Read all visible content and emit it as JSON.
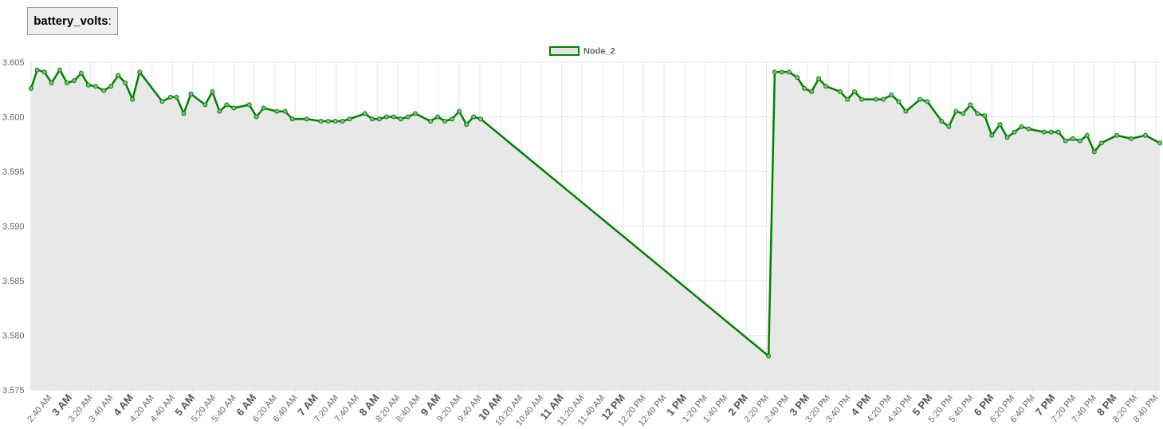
{
  "header": {
    "label": "battery_volts",
    "suffix": ":"
  },
  "chart_data": {
    "type": "line",
    "x": [
      "02:22",
      "02:28",
      "02:35",
      "02:42",
      "02:50",
      "02:57",
      "03:04",
      "03:11",
      "03:18",
      "03:25",
      "03:33",
      "03:40",
      "03:47",
      "03:54",
      "04:01",
      "04:08",
      "04:30",
      "04:38",
      "04:44",
      "04:51",
      "04:58",
      "05:12",
      "05:19",
      "05:26",
      "05:33",
      "05:40",
      "05:55",
      "06:02",
      "06:09",
      "06:22",
      "06:30",
      "06:37",
      "06:51",
      "07:05",
      "07:12",
      "07:19",
      "07:26",
      "07:33",
      "07:48",
      "07:55",
      "08:02",
      "08:09",
      "08:16",
      "08:23",
      "08:30",
      "08:37",
      "08:52",
      "08:59",
      "09:06",
      "09:13",
      "09:20",
      "09:27",
      "09:34",
      "09:41",
      "14:22",
      "14:28",
      "14:35",
      "14:42",
      "14:50",
      "14:57",
      "15:04",
      "15:11",
      "15:18",
      "15:32",
      "15:39",
      "15:46",
      "15:53",
      "16:07",
      "16:14",
      "16:22",
      "16:29",
      "16:36",
      "16:50",
      "16:57",
      "17:11",
      "17:18",
      "17:25",
      "17:32",
      "17:39",
      "17:46",
      "17:53",
      "18:00",
      "18:08",
      "18:15",
      "18:22",
      "18:29",
      "18:36",
      "18:51",
      "18:58",
      "19:05",
      "19:12",
      "19:19",
      "19:26",
      "19:33",
      "19:40",
      "19:47",
      "20:02",
      "20:16",
      "20:30",
      "20:44"
    ],
    "series": [
      {
        "name": "Node_2",
        "color": "#008000",
        "fill": "#e5e5e5",
        "values": [
          3.6026,
          3.6043,
          3.6041,
          3.6031,
          3.6043,
          3.6031,
          3.6033,
          3.604,
          3.6029,
          3.6028,
          3.6024,
          3.6028,
          3.6038,
          3.6031,
          3.6016,
          3.6041,
          3.6014,
          3.6018,
          3.6018,
          3.6003,
          3.6021,
          3.6011,
          3.6023,
          3.6005,
          3.6011,
          3.6008,
          3.6011,
          3.6,
          3.6008,
          3.6005,
          3.6005,
          3.5998,
          3.5998,
          3.5996,
          3.5996,
          3.5996,
          3.5996,
          3.5998,
          3.6003,
          3.5998,
          3.5998,
          3.6,
          3.6,
          3.5998,
          3.6,
          3.6003,
          3.5996,
          3.6,
          3.5996,
          3.5998,
          3.6005,
          3.5993,
          3.6,
          3.5998,
          3.5781,
          3.6041,
          3.6041,
          3.6041,
          3.6036,
          3.6026,
          3.6023,
          3.6035,
          3.6028,
          3.6023,
          3.6016,
          3.6023,
          3.6016,
          3.6016,
          3.6016,
          3.602,
          3.6014,
          3.6005,
          3.6016,
          3.6014,
          3.5996,
          3.5991,
          3.6005,
          3.6003,
          3.6011,
          3.6003,
          3.6001,
          3.5983,
          3.5993,
          3.5981,
          3.5986,
          3.5991,
          3.5989,
          3.5986,
          3.5986,
          3.5986,
          3.5978,
          3.598,
          3.5978,
          3.5983,
          3.5968,
          3.5976,
          3.5983,
          3.598,
          3.5983,
          3.5976
        ]
      }
    ],
    "xlim": [
      "02:22",
      "20:44"
    ],
    "ylim": [
      3.575,
      3.605
    ],
    "yticks": [
      {
        "value": 3.575,
        "label": "3.575"
      },
      {
        "value": 3.58,
        "label": "3.580"
      },
      {
        "value": 3.585,
        "label": "3.585"
      },
      {
        "value": 3.59,
        "label": "3.590"
      },
      {
        "value": 3.595,
        "label": "3.595"
      },
      {
        "value": 3.6,
        "label": "3.600"
      },
      {
        "value": 3.605,
        "label": "3.605"
      }
    ],
    "xticks": [
      {
        "value": "02:40",
        "label": "2:40 AM"
      },
      {
        "value": "03:00",
        "label": "3 AM"
      },
      {
        "value": "03:20",
        "label": "3:20 AM"
      },
      {
        "value": "03:40",
        "label": "3:40 AM"
      },
      {
        "value": "04:00",
        "label": "4 AM"
      },
      {
        "value": "04:20",
        "label": "4:20 AM"
      },
      {
        "value": "04:40",
        "label": "4:40 AM"
      },
      {
        "value": "05:00",
        "label": "5 AM"
      },
      {
        "value": "05:20",
        "label": "5:20 AM"
      },
      {
        "value": "05:40",
        "label": "5:40 AM"
      },
      {
        "value": "06:00",
        "label": "6 AM"
      },
      {
        "value": "06:20",
        "label": "6:20 AM"
      },
      {
        "value": "06:40",
        "label": "6:40 AM"
      },
      {
        "value": "07:00",
        "label": "7 AM"
      },
      {
        "value": "07:20",
        "label": "7:20 AM"
      },
      {
        "value": "07:40",
        "label": "7:40 AM"
      },
      {
        "value": "08:00",
        "label": "8 AM"
      },
      {
        "value": "08:20",
        "label": "8:20 AM"
      },
      {
        "value": "08:40",
        "label": "8:40 AM"
      },
      {
        "value": "09:00",
        "label": "9 AM"
      },
      {
        "value": "09:20",
        "label": "9:20 AM"
      },
      {
        "value": "09:40",
        "label": "9:40 AM"
      },
      {
        "value": "10:00",
        "label": "10 AM"
      },
      {
        "value": "10:20",
        "label": "10:20 AM"
      },
      {
        "value": "10:40",
        "label": "10:40 AM"
      },
      {
        "value": "11:00",
        "label": "11 AM"
      },
      {
        "value": "11:20",
        "label": "11:20 AM"
      },
      {
        "value": "11:40",
        "label": "11:40 AM"
      },
      {
        "value": "12:00",
        "label": "12 PM"
      },
      {
        "value": "12:20",
        "label": "12:20 PM"
      },
      {
        "value": "12:40",
        "label": "12:40 PM"
      },
      {
        "value": "13:00",
        "label": "1 PM"
      },
      {
        "value": "13:20",
        "label": "1:20 PM"
      },
      {
        "value": "13:40",
        "label": "1:40 PM"
      },
      {
        "value": "14:00",
        "label": "2 PM"
      },
      {
        "value": "14:20",
        "label": "2:20 PM"
      },
      {
        "value": "14:40",
        "label": "2:40 PM"
      },
      {
        "value": "15:00",
        "label": "3 PM"
      },
      {
        "value": "15:20",
        "label": "3:20 PM"
      },
      {
        "value": "15:40",
        "label": "3:40 PM"
      },
      {
        "value": "16:00",
        "label": "4 PM"
      },
      {
        "value": "16:20",
        "label": "4:20 PM"
      },
      {
        "value": "16:40",
        "label": "4:40 PM"
      },
      {
        "value": "17:00",
        "label": "5 PM"
      },
      {
        "value": "17:20",
        "label": "5:20 PM"
      },
      {
        "value": "17:40",
        "label": "5:40 PM"
      },
      {
        "value": "18:00",
        "label": "6 PM"
      },
      {
        "value": "18:20",
        "label": "6:20 PM"
      },
      {
        "value": "18:40",
        "label": "6:40 PM"
      },
      {
        "value": "19:00",
        "label": "7 PM"
      },
      {
        "value": "19:20",
        "label": "7:20 PM"
      },
      {
        "value": "19:40",
        "label": "7:40 PM"
      },
      {
        "value": "20:00",
        "label": "8 PM"
      },
      {
        "value": "20:20",
        "label": "8:20 PM"
      },
      {
        "value": "20:40",
        "label": "8:40 PM"
      }
    ],
    "grid": true,
    "legend": "top"
  }
}
